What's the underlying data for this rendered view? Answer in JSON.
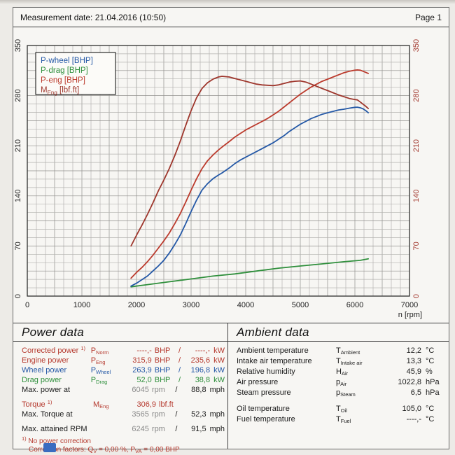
{
  "header": {
    "title": "Measurement date: 21.04.2016 (10:50)",
    "page": "Page 1"
  },
  "chart_data": {
    "type": "line",
    "title": "",
    "xlabel": "n [rpm]",
    "xlim": [
      0,
      7000
    ],
    "x_ticks": [
      0,
      1000,
      2000,
      3000,
      4000,
      5000,
      6000,
      7000
    ],
    "ylim": [
      0,
      350
    ],
    "y_ticks": [
      0,
      70,
      140,
      210,
      280,
      350
    ],
    "grid": true,
    "legend_position": "top-left",
    "axis_color_left": "#222222",
    "axis_color_right": "#a33a30",
    "legend": [
      {
        "color": "#2458a6",
        "segs": [
          {
            "t": "P-wheel [BHP]"
          }
        ]
      },
      {
        "color": "#2f8f3c",
        "segs": [
          {
            "t": "P-drag [BHP]"
          }
        ]
      },
      {
        "color": "#bb3a2c",
        "segs": [
          {
            "t": "P-eng [BHP]"
          }
        ]
      },
      {
        "color": "#9e362c",
        "segs": [
          {
            "t": "M"
          },
          {
            "s": "Eng"
          },
          {
            "t": " [lbf.ft]"
          }
        ]
      }
    ],
    "series": [
      {
        "id": "p-drag",
        "name": "P-drag [BHP]",
        "color": "#2f8f3c",
        "points": [
          [
            1900,
            13
          ],
          [
            2200,
            16
          ],
          [
            2600,
            20
          ],
          [
            3000,
            24
          ],
          [
            3400,
            28
          ],
          [
            3800,
            31
          ],
          [
            4200,
            35
          ],
          [
            4600,
            39
          ],
          [
            5000,
            42
          ],
          [
            5400,
            45
          ],
          [
            5800,
            48
          ],
          [
            6100,
            50
          ],
          [
            6245,
            52
          ]
        ]
      },
      {
        "id": "p-wheel",
        "name": "P-wheel [BHP]",
        "color": "#2458a6",
        "points": [
          [
            1900,
            14
          ],
          [
            2000,
            18
          ],
          [
            2100,
            23
          ],
          [
            2200,
            28
          ],
          [
            2300,
            35
          ],
          [
            2400,
            42
          ],
          [
            2500,
            50
          ],
          [
            2600,
            60
          ],
          [
            2700,
            72
          ],
          [
            2800,
            85
          ],
          [
            2900,
            101
          ],
          [
            3000,
            118
          ],
          [
            3100,
            134
          ],
          [
            3200,
            148
          ],
          [
            3300,
            157
          ],
          [
            3400,
            164
          ],
          [
            3500,
            169
          ],
          [
            3565,
            172
          ],
          [
            3700,
            179
          ],
          [
            3800,
            185
          ],
          [
            3900,
            190
          ],
          [
            4000,
            194
          ],
          [
            4100,
            198
          ],
          [
            4200,
            202
          ],
          [
            4300,
            206
          ],
          [
            4400,
            210
          ],
          [
            4500,
            214
          ],
          [
            4600,
            219
          ],
          [
            4700,
            224
          ],
          [
            4800,
            230
          ],
          [
            4900,
            235
          ],
          [
            5000,
            240
          ],
          [
            5100,
            244
          ],
          [
            5200,
            248
          ],
          [
            5300,
            251
          ],
          [
            5400,
            254
          ],
          [
            5500,
            256
          ],
          [
            5600,
            258
          ],
          [
            5700,
            260
          ],
          [
            5800,
            261
          ],
          [
            5900,
            262.5
          ],
          [
            6000,
            263.7
          ],
          [
            6045,
            263.9
          ],
          [
            6100,
            263
          ],
          [
            6150,
            261.5
          ],
          [
            6200,
            259
          ],
          [
            6245,
            256
          ]
        ]
      },
      {
        "id": "p-eng",
        "name": "P-eng [BHP]",
        "color": "#bb3a2c",
        "points": [
          [
            1900,
            25
          ],
          [
            2000,
            33
          ],
          [
            2100,
            40
          ],
          [
            2200,
            48
          ],
          [
            2300,
            57
          ],
          [
            2400,
            67
          ],
          [
            2500,
            77
          ],
          [
            2600,
            88
          ],
          [
            2700,
            101
          ],
          [
            2800,
            115
          ],
          [
            2900,
            131
          ],
          [
            3000,
            148
          ],
          [
            3100,
            164
          ],
          [
            3200,
            178
          ],
          [
            3300,
            189
          ],
          [
            3400,
            197
          ],
          [
            3500,
            204
          ],
          [
            3565,
            208
          ],
          [
            3700,
            216
          ],
          [
            3800,
            222
          ],
          [
            3900,
            227
          ],
          [
            4000,
            232
          ],
          [
            4100,
            236
          ],
          [
            4200,
            240
          ],
          [
            4300,
            244
          ],
          [
            4400,
            248
          ],
          [
            4500,
            253
          ],
          [
            4600,
            258
          ],
          [
            4700,
            264
          ],
          [
            4800,
            270
          ],
          [
            4900,
            276
          ],
          [
            5000,
            282
          ],
          [
            5100,
            287
          ],
          [
            5200,
            292
          ],
          [
            5300,
            296
          ],
          [
            5400,
            300
          ],
          [
            5500,
            303
          ],
          [
            5600,
            306
          ],
          [
            5700,
            309
          ],
          [
            5800,
            312
          ],
          [
            5900,
            314
          ],
          [
            6000,
            315.5
          ],
          [
            6045,
            315.9
          ],
          [
            6100,
            315.5
          ],
          [
            6150,
            314
          ],
          [
            6200,
            312.5
          ],
          [
            6245,
            311
          ]
        ]
      },
      {
        "id": "m-eng",
        "name": "M-eng [lbf.ft]",
        "color": "#9e362c",
        "points": [
          [
            1900,
            70
          ],
          [
            2000,
            85
          ],
          [
            2100,
            99
          ],
          [
            2200,
            114
          ],
          [
            2300,
            130
          ],
          [
            2400,
            147
          ],
          [
            2500,
            162
          ],
          [
            2600,
            178
          ],
          [
            2700,
            196
          ],
          [
            2800,
            216
          ],
          [
            2900,
            238
          ],
          [
            3000,
            259
          ],
          [
            3100,
            277
          ],
          [
            3200,
            290
          ],
          [
            3300,
            298
          ],
          [
            3400,
            303
          ],
          [
            3500,
            306
          ],
          [
            3565,
            307
          ],
          [
            3700,
            306
          ],
          [
            3800,
            304
          ],
          [
            3900,
            302
          ],
          [
            4000,
            300
          ],
          [
            4100,
            298
          ],
          [
            4200,
            296
          ],
          [
            4300,
            295
          ],
          [
            4400,
            294.5
          ],
          [
            4500,
            294
          ],
          [
            4600,
            295
          ],
          [
            4700,
            297
          ],
          [
            4800,
            299
          ],
          [
            4900,
            300
          ],
          [
            5000,
            300.5
          ],
          [
            5100,
            299
          ],
          [
            5200,
            296
          ],
          [
            5300,
            293
          ],
          [
            5400,
            290
          ],
          [
            5500,
            287
          ],
          [
            5600,
            284
          ],
          [
            5700,
            281
          ],
          [
            5800,
            278.5
          ],
          [
            5900,
            276
          ],
          [
            6000,
            274.5
          ],
          [
            6045,
            274
          ],
          [
            6100,
            271
          ],
          [
            6150,
            268
          ],
          [
            6200,
            265
          ],
          [
            6245,
            262
          ]
        ]
      }
    ]
  },
  "power_data": {
    "heading": "Power data",
    "rows": [
      {
        "label": [
          {
            "t": "Corrected power "
          },
          {
            "p": "1)"
          }
        ],
        "symbol": [
          {
            "t": "P"
          },
          {
            "s": "Norm"
          }
        ],
        "v1": "----,-",
        "u1": "BHP",
        "slash": "/",
        "v2": "----,-",
        "u2": "kW",
        "color": "#b5392e"
      },
      {
        "label": [
          {
            "t": "Engine power"
          }
        ],
        "symbol": [
          {
            "t": "P"
          },
          {
            "s": "Eng"
          }
        ],
        "v1": "315,9",
        "u1": "BHP",
        "slash": "/",
        "v2": "235,6",
        "u2": "kW",
        "color": "#b5392e"
      },
      {
        "label": [
          {
            "t": "Wheel power"
          }
        ],
        "symbol": [
          {
            "t": "P"
          },
          {
            "s": "Wheel"
          }
        ],
        "v1": "263,9",
        "u1": "BHP",
        "slash": "/",
        "v2": "196,8",
        "u2": "kW",
        "color": "#2458a6"
      },
      {
        "label": [
          {
            "t": "Drag power"
          }
        ],
        "symbol": [
          {
            "t": "P"
          },
          {
            "s": "Drag"
          }
        ],
        "v1": "52,0",
        "u1": "BHP",
        "slash": "/",
        "v2": "38,8",
        "u2": "kW",
        "color": "#2f8f3c"
      },
      {
        "label": [
          {
            "t": "Max. power at"
          }
        ],
        "v1": "6045",
        "u1": "rpm",
        "slash": "/",
        "v2": "88,8",
        "u2": "mph",
        "color": "#1a1a1a",
        "val_gray": true
      },
      {
        "label": [
          {
            "t": "Torque "
          },
          {
            "p": "1)"
          }
        ],
        "symbol": [
          {
            "t": "M"
          },
          {
            "s": "Eng"
          }
        ],
        "v1": "306,9",
        "u1": "lbf.ft",
        "color": "#b5392e",
        "gap": true
      },
      {
        "label": [
          {
            "t": "Max. Torque at"
          }
        ],
        "v1": "3565",
        "u1": "rpm",
        "slash": "/",
        "v2": "52,3",
        "u2": "mph",
        "color": "#1a1a1a",
        "val_gray": true
      },
      {
        "label": [
          {
            "t": "Max. attained RPM"
          }
        ],
        "v1": "6245",
        "u1": "rpm",
        "slash": "/",
        "v2": "91,5",
        "u2": "mph",
        "color": "#1a1a1a",
        "val_gray": true,
        "gap": true
      }
    ],
    "footnote_color": "#b5392e",
    "footnotes": [
      {
        "segs": [
          {
            "p": "1)"
          },
          {
            "t": " No power correction"
          }
        ],
        "indent": false
      },
      {
        "segs": [
          {
            "t": "Correction factors: Q"
          },
          {
            "s": "V"
          },
          {
            "t": " =  0,00 %, P"
          },
          {
            "s": "VA"
          },
          {
            "t": " =  0,00 BHP"
          }
        ],
        "indent": true
      }
    ]
  },
  "ambient_data": {
    "heading": "Ambient data",
    "rows": [
      {
        "label": "Ambient temperature",
        "symbol": [
          {
            "t": "T"
          },
          {
            "s": "Ambient"
          }
        ],
        "value": "12,2",
        "unit": "°C"
      },
      {
        "label": "Intake air temperature",
        "symbol": [
          {
            "t": "T"
          },
          {
            "s": "Intake air"
          }
        ],
        "value": "13,3",
        "unit": "°C"
      },
      {
        "label": "Relative humidity",
        "symbol": [
          {
            "t": "H"
          },
          {
            "s": "Air"
          }
        ],
        "value": "45,9",
        "unit": "%"
      },
      {
        "label": "Air pressure",
        "symbol": [
          {
            "t": "p"
          },
          {
            "s": "Air"
          }
        ],
        "value": "1022,8",
        "unit": "hPa"
      },
      {
        "label": "Steam pressure",
        "symbol": [
          {
            "t": "p"
          },
          {
            "s": "Steam"
          }
        ],
        "value": "6,5",
        "unit": "hPa"
      },
      {
        "label": "Oil temperature",
        "symbol": [
          {
            "t": "T"
          },
          {
            "s": "Oil"
          }
        ],
        "value": "105,0",
        "unit": "°C",
        "gap": true
      },
      {
        "label": "Fuel temperature",
        "symbol": [
          {
            "t": "T"
          },
          {
            "s": "Fuel"
          }
        ],
        "value": "----,-",
        "unit": "°C"
      }
    ]
  }
}
